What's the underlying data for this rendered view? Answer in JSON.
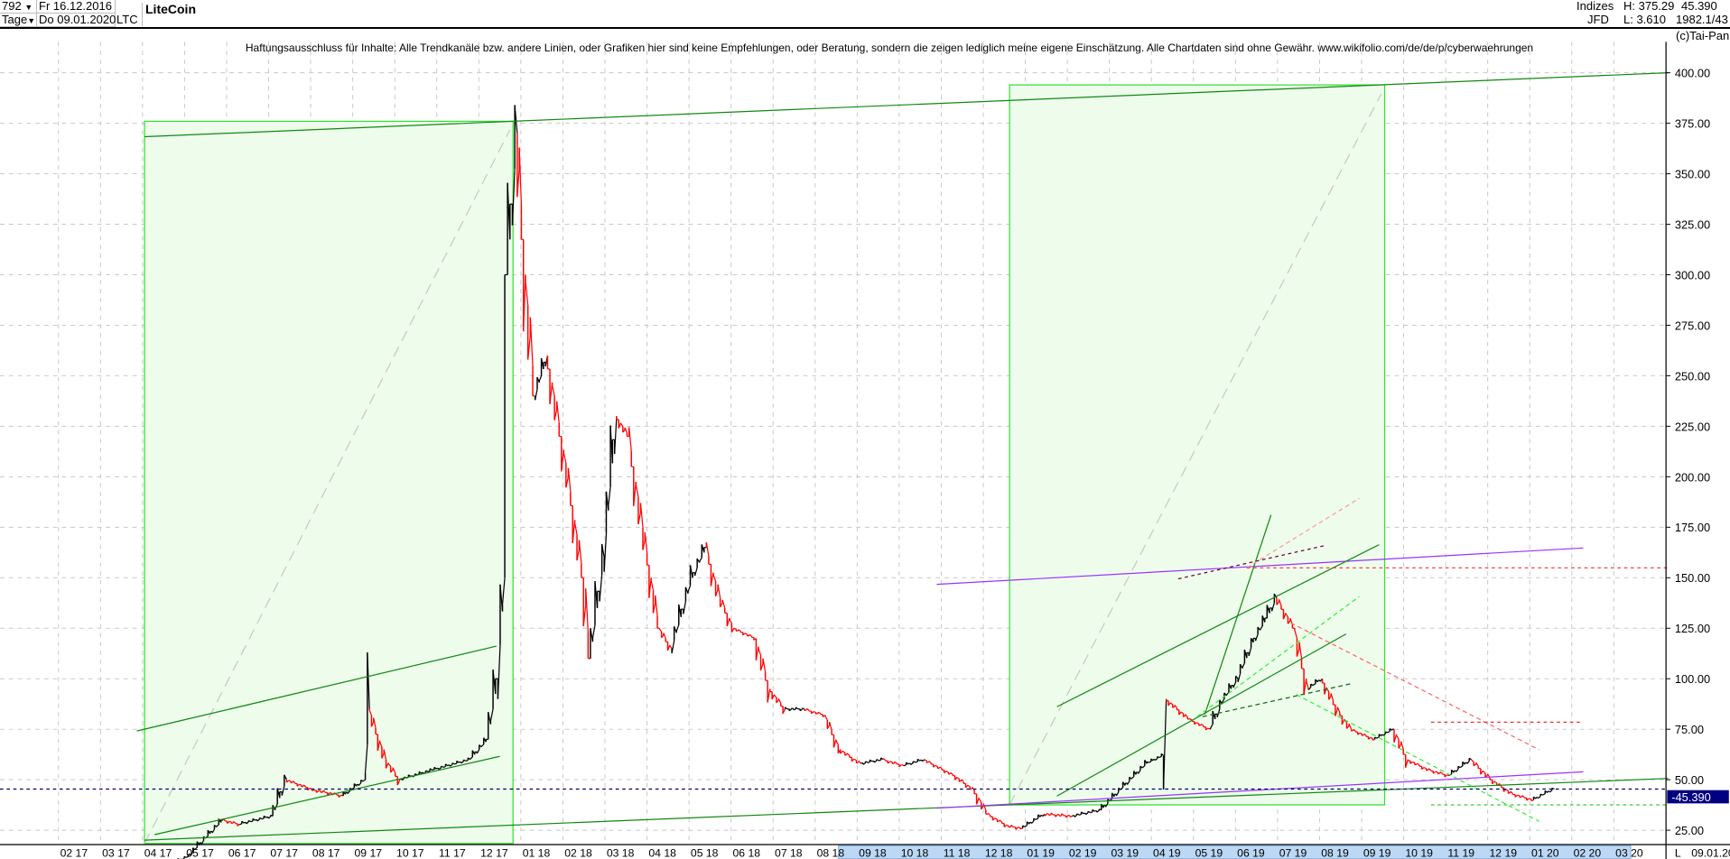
{
  "header": {
    "bars_count": "792",
    "period": "Tage",
    "start_date": "Fr 16.12.2016",
    "end_date": "Do 09.01.2020",
    "symbol": "LTC",
    "title": "LiteCoin",
    "index_label": "Indizes",
    "source": "JFD",
    "high": "H: 375.29",
    "low": "L: 3.610",
    "last": "45.390",
    "position": "1982.1/43",
    "copyright": "(c)Tai-Pan"
  },
  "disclaimer": "Haftungsausschluss für Inhalte: Alle Trendkanäle bzw. andere Linien, oder Grafiken hier sind keine Empfehlungen, oder Beratung, sondern die zeigen lediglich meine eigene Einschätzung. Alle Chartdaten sind ohne Gewähr.  www.wikifolio.com/de/de/p/cyberwaehrungen",
  "footer": {
    "scale_label": "L",
    "current_date": "09.01.20"
  },
  "colors": {
    "up": "#000000",
    "down": "#ff0000",
    "box_fill": "#eefcec",
    "box_border": "#33dd33",
    "trend_green": "#118811",
    "trend_purple": "#9933ff",
    "current_line": "#000066",
    "current_label_bg": "#000080"
  },
  "chart_data": {
    "type": "line",
    "title": "LiteCoin",
    "ylim": [
      12,
      412
    ],
    "yticks": [
      "25.00",
      "50.00",
      "75.00",
      "100.00",
      "125.00",
      "150.00",
      "175.00",
      "200.00",
      "225.00",
      "250.00",
      "275.00",
      "300.00",
      "325.00",
      "350.00",
      "375.00",
      "400.00"
    ],
    "xticks": [
      "02 17",
      "03 17",
      "04 17",
      "05 17",
      "06 17",
      "07 17",
      "08 17",
      "09 17",
      "10 17",
      "11 17",
      "12 17",
      "01 18",
      "02 18",
      "03 18",
      "04 18",
      "05 18",
      "06 18",
      "07 18",
      "08 18",
      "09 18",
      "10 18",
      "11 18",
      "12 18",
      "01 19",
      "02 19",
      "03 19",
      "04 19",
      "05 19",
      "06 19",
      "07 19",
      "08 19",
      "09 19",
      "10 19",
      "11 19",
      "12 19",
      "01 20",
      "02 20",
      "03 20"
    ],
    "grid": true,
    "current_value": "45.390",
    "series": [
      {
        "points": [
          [
            "2016-12-16",
            4
          ],
          [
            "2017-03-25",
            4
          ],
          [
            "2017-04-05",
            6
          ],
          [
            "2017-04-25",
            12
          ],
          [
            "2017-05-20",
            30
          ],
          [
            "2017-06-01",
            28
          ],
          [
            "2017-06-25",
            32
          ],
          [
            "2017-07-05",
            50
          ],
          [
            "2017-07-25",
            45
          ],
          [
            "2017-08-15",
            42
          ],
          [
            "2017-08-31",
            50
          ],
          [
            "2017-09-03",
            85
          ],
          [
            "2017-09-15",
            60
          ],
          [
            "2017-09-25",
            50
          ],
          [
            "2017-10-20",
            55
          ],
          [
            "2017-11-15",
            60
          ],
          [
            "2017-11-28",
            70
          ],
          [
            "2017-12-05",
            100
          ],
          [
            "2017-12-10",
            150
          ],
          [
            "2017-12-12",
            300
          ],
          [
            "2017-12-19",
            370
          ],
          [
            "2017-12-25",
            300
          ],
          [
            "2018-01-01",
            240
          ],
          [
            "2018-01-10",
            260
          ],
          [
            "2018-01-25",
            200
          ],
          [
            "2018-02-05",
            150
          ],
          [
            "2018-02-10",
            110
          ],
          [
            "2018-02-20",
            160
          ],
          [
            "2018-03-01",
            230
          ],
          [
            "2018-03-10",
            220
          ],
          [
            "2018-03-20",
            175
          ],
          [
            "2018-04-01",
            125
          ],
          [
            "2018-04-10",
            115
          ],
          [
            "2018-04-25",
            150
          ],
          [
            "2018-05-05",
            165
          ],
          [
            "2018-05-15",
            140
          ],
          [
            "2018-05-25",
            125
          ],
          [
            "2018-06-10",
            120
          ],
          [
            "2018-06-20",
            95
          ],
          [
            "2018-07-01",
            85
          ],
          [
            "2018-07-15",
            85
          ],
          [
            "2018-07-30",
            82
          ],
          [
            "2018-08-10",
            65
          ],
          [
            "2018-08-25",
            58
          ],
          [
            "2018-09-10",
            60
          ],
          [
            "2018-09-25",
            57
          ],
          [
            "2018-10-10",
            60
          ],
          [
            "2018-11-01",
            52
          ],
          [
            "2018-11-15",
            45
          ],
          [
            "2018-11-25",
            33
          ],
          [
            "2018-12-10",
            27
          ],
          [
            "2018-12-20",
            26
          ],
          [
            "2019-01-05",
            33
          ],
          [
            "2019-01-25",
            32
          ],
          [
            "2019-02-15",
            35
          ],
          [
            "2019-03-01",
            45
          ],
          [
            "2019-03-20",
            58
          ],
          [
            "2019-04-01",
            62
          ],
          [
            "2019-04-03",
            90
          ],
          [
            "2019-04-20",
            80
          ],
          [
            "2019-05-05",
            75
          ],
          [
            "2019-05-15",
            90
          ],
          [
            "2019-05-25",
            100
          ],
          [
            "2019-06-05",
            118
          ],
          [
            "2019-06-15",
            130
          ],
          [
            "2019-06-22",
            140
          ],
          [
            "2019-07-05",
            125
          ],
          [
            "2019-07-15",
            95
          ],
          [
            "2019-07-25",
            100
          ],
          [
            "2019-08-05",
            85
          ],
          [
            "2019-08-15",
            75
          ],
          [
            "2019-09-01",
            70
          ],
          [
            "2019-09-15",
            75
          ],
          [
            "2019-09-25",
            60
          ],
          [
            "2019-10-10",
            55
          ],
          [
            "2019-10-25",
            52
          ],
          [
            "2019-11-10",
            60
          ],
          [
            "2019-11-25",
            50
          ],
          [
            "2019-12-10",
            43
          ],
          [
            "2019-12-25",
            40
          ],
          [
            "2020-01-09",
            45.39
          ]
        ]
      }
    ]
  }
}
